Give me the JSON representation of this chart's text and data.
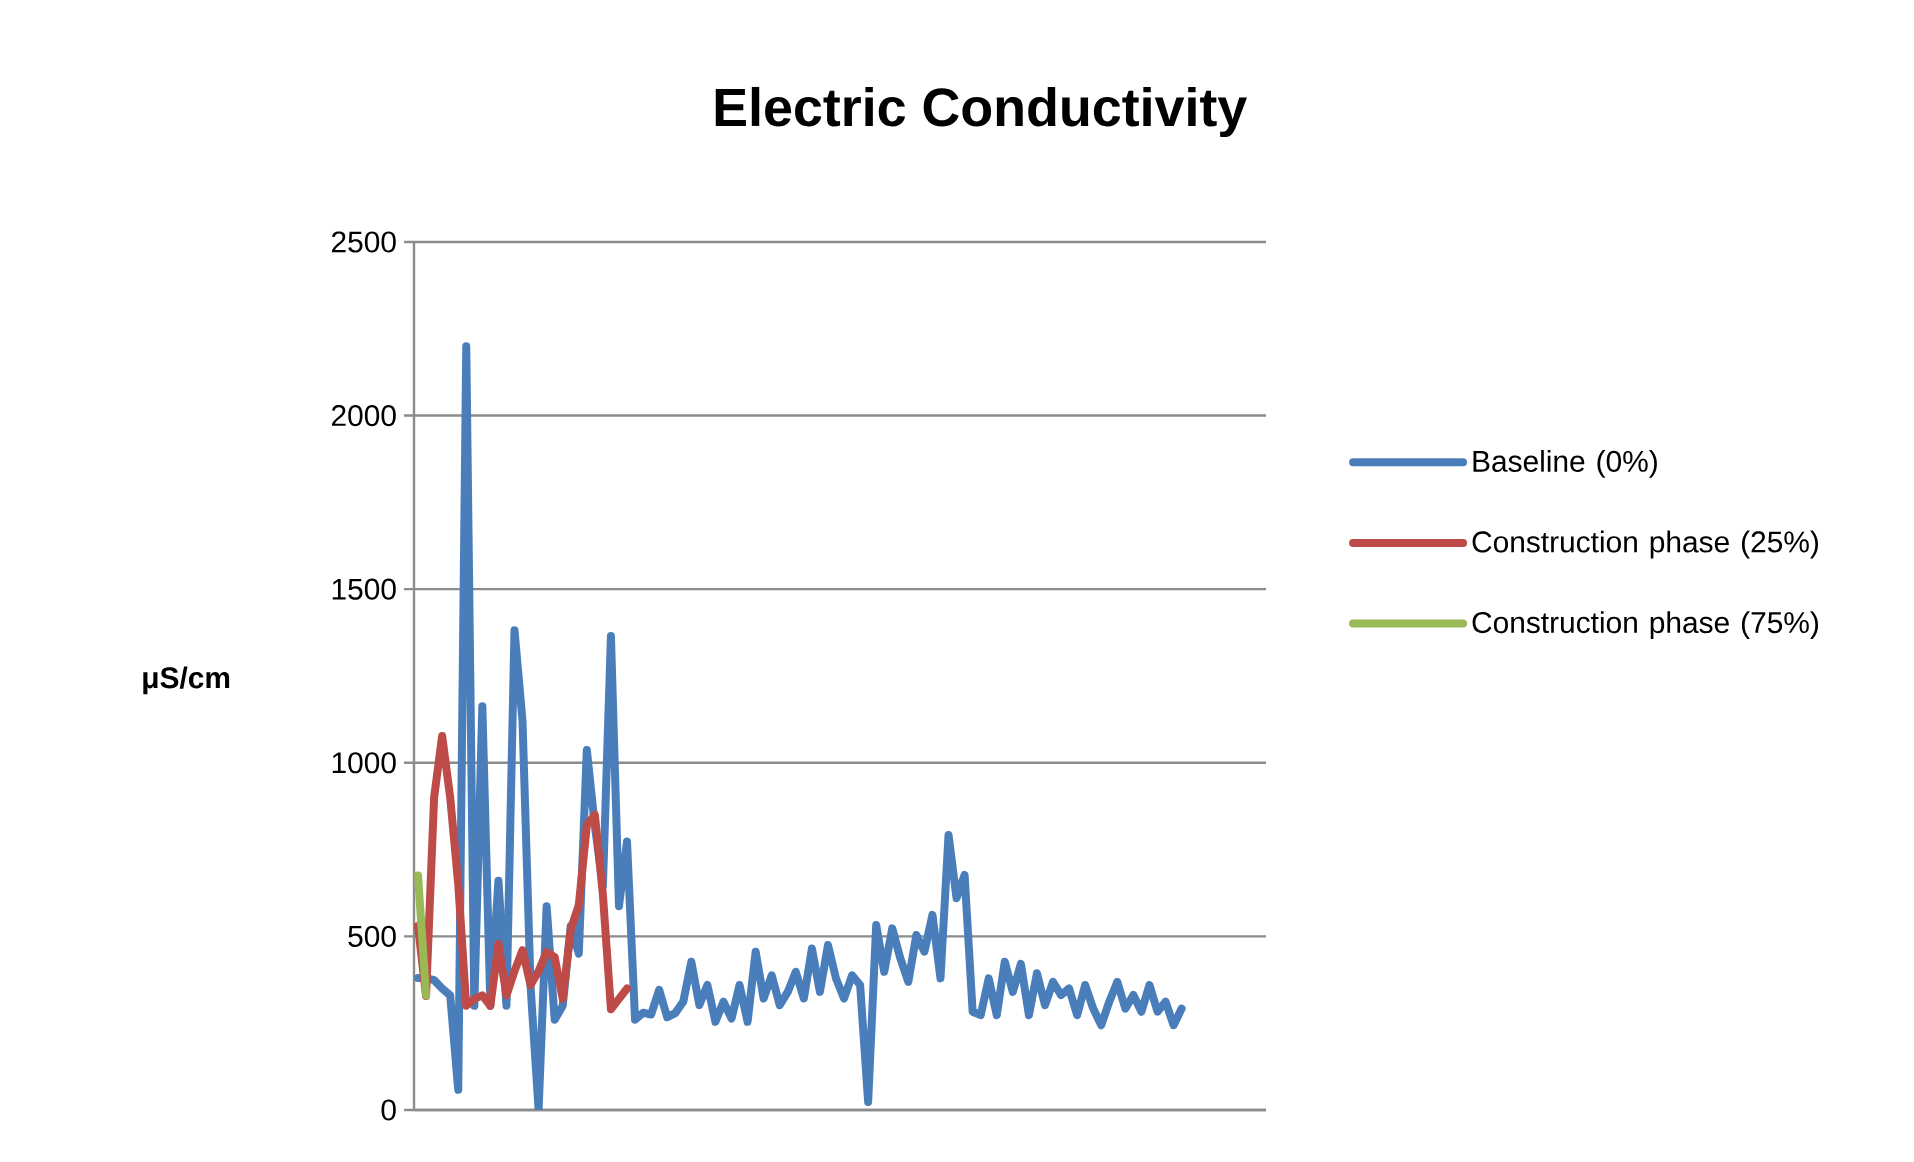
{
  "chart_data": {
    "type": "line",
    "title": "Electric Conductivity",
    "ylabel": "μS/cm",
    "categories": [
      null,
      null,
      null,
      null,
      null,
      null,
      null,
      null,
      null,
      null,
      null,
      null,
      null,
      null,
      null,
      null,
      null,
      null,
      null,
      null,
      null,
      null,
      null,
      null,
      null,
      null,
      null,
      null,
      null,
      null,
      null,
      null,
      null,
      null,
      null,
      null,
      null,
      null,
      null,
      null,
      null,
      null,
      null,
      null,
      null,
      null,
      null,
      null,
      null,
      null,
      null,
      null,
      null,
      null,
      null,
      null,
      null,
      null,
      null,
      null,
      null,
      null,
      null,
      null,
      null,
      null,
      null,
      null,
      null,
      null,
      null,
      null,
      null,
      null,
      null,
      null,
      null,
      null,
      null,
      null,
      null,
      null,
      null,
      null,
      null,
      null,
      null,
      null,
      null,
      null,
      null,
      null,
      null,
      null,
      null,
      null,
      null,
      null,
      null,
      null,
      null,
      null,
      null,
      null,
      null,
      null
    ],
    "series": [
      {
        "name": "Baseline (0%)",
        "color": "#4a7ebb",
        "values": [
          380,
          380,
          374,
          350,
          330,
          58,
          2200,
          300,
          1163,
          300,
          660,
          300,
          1382,
          1120,
          357,
          0,
          587,
          260,
          300,
          530,
          450,
          1037,
          818,
          645,
          1365,
          587,
          773,
          260,
          280,
          275,
          346,
          267,
          279,
          312,
          427,
          302,
          360,
          254,
          312,
          263,
          360,
          254,
          456,
          321,
          388,
          302,
          340,
          398,
          321,
          465,
          340,
          475,
          379,
          321,
          388,
          360,
          23,
          533,
          398,
          523,
          437,
          369,
          504,
          456,
          562,
          379,
          792,
          610,
          677,
          283,
          273,
          379,
          273,
          427,
          340,
          421,
          273,
          394,
          302,
          369,
          331,
          350,
          273,
          360,
          292,
          244,
          312,
          369,
          292,
          331,
          283,
          360,
          283,
          312,
          244,
          292,
          null,
          null,
          null,
          null,
          null,
          null,
          null,
          null,
          null,
          null
        ]
      },
      {
        "name": "Construction phase (25%)",
        "color": "#be4b48",
        "values": [
          530,
          328,
          900,
          1077,
          900,
          650,
          300,
          320,
          330,
          300,
          478,
          330,
          400,
          460,
          360,
          400,
          455,
          440,
          320,
          520,
          590,
          820,
          850,
          620,
          290,
          320,
          350,
          null,
          null,
          null,
          null,
          null,
          null,
          null,
          null,
          null,
          null,
          null,
          null,
          null,
          null,
          null,
          null,
          null,
          null,
          null,
          null,
          null,
          null,
          null,
          null,
          null,
          null,
          null,
          null,
          null,
          null,
          null,
          null,
          null,
          null,
          null,
          null,
          null,
          null,
          null,
          null,
          null,
          null,
          null,
          null,
          null,
          null,
          null,
          null,
          null,
          null,
          null,
          null,
          null,
          null,
          null,
          null,
          null,
          null,
          null,
          null,
          null,
          null,
          null,
          null,
          null,
          null,
          null,
          null,
          null,
          null,
          null,
          null,
          null,
          null,
          null,
          null,
          null,
          null,
          null
        ]
      },
      {
        "name": "Construction phase (75%)",
        "color": "#98b954",
        "values": [
          675,
          330,
          null,
          null,
          null,
          null,
          null,
          null,
          null,
          null,
          null,
          null,
          null,
          null,
          null,
          null,
          null,
          null,
          null,
          null,
          null,
          null,
          null,
          null,
          null,
          null,
          null,
          null,
          null,
          null,
          null,
          null,
          null,
          null,
          null,
          null,
          null,
          null,
          null,
          null,
          null,
          null,
          null,
          null,
          null,
          null,
          null,
          null,
          null,
          null,
          null,
          null,
          null,
          null,
          null,
          null,
          null,
          null,
          null,
          null,
          null,
          null,
          null,
          null,
          null,
          null,
          null,
          null,
          null,
          null,
          null,
          null,
          null,
          null,
          null,
          null,
          null,
          null,
          null,
          null,
          null,
          null,
          null,
          null,
          null,
          null,
          null,
          null,
          null,
          null,
          null,
          null,
          null,
          null,
          null,
          null,
          null,
          null,
          null,
          null,
          null,
          null,
          null,
          null,
          null,
          null
        ]
      }
    ],
    "ylim": [
      0,
      2500
    ],
    "yticks": [
      0,
      500,
      1000,
      1500,
      2000,
      2500
    ],
    "grid": "y",
    "legend": "right",
    "tick_labels": "y"
  }
}
